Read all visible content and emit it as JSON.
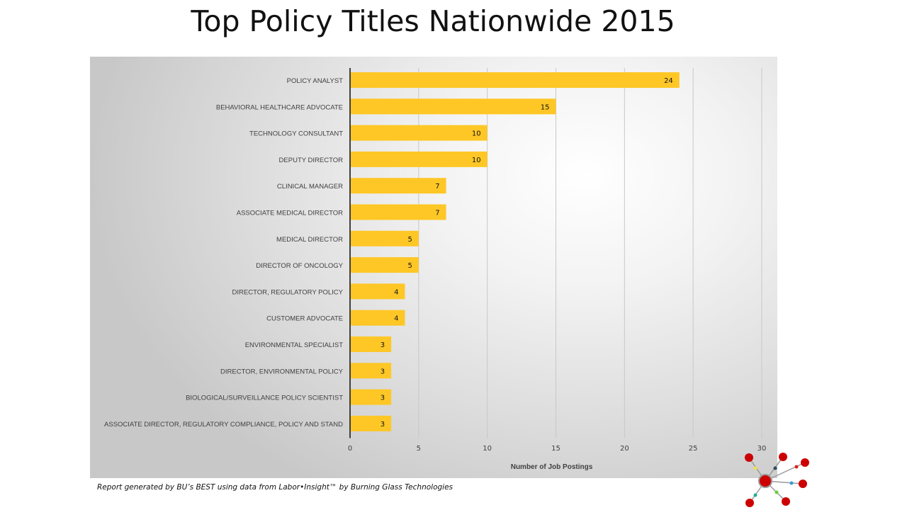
{
  "title": "Top Policy Titles Nationwide 2015",
  "footer": "Report generated by BU’s BEST using data from Labor•Insight™ by Burning Glass Technologies",
  "logo": "network-logo-icon",
  "colors": {
    "bar": "#FEC726",
    "axis": "#404040",
    "grid": "#c8c8c8",
    "label": "#404040",
    "logo_node": "#CC0000"
  },
  "chart_data": {
    "type": "bar",
    "orientation": "horizontal",
    "title": "Top Policy Titles Nationwide 2015",
    "xlabel": "Number of Job Postings",
    "ylabel": "",
    "xlim": [
      0,
      30
    ],
    "xticks": [
      "0",
      "5",
      "10",
      "15",
      "20",
      "25",
      "30"
    ],
    "grid": true,
    "legend": "none",
    "categories": [
      "POLICY ANALYST",
      "BEHAVIORAL HEALTHCARE ADVOCATE",
      "TECHNOLOGY CONSULTANT",
      "DEPUTY DIRECTOR",
      "CLINICAL MANAGER",
      "ASSOCIATE MEDICAL DIRECTOR",
      "MEDICAL DIRECTOR",
      "DIRECTOR OF ONCOLOGY",
      "DIRECTOR, REGULATORY POLICY",
      "CUSTOMER ADVOCATE",
      "ENVIRONMENTAL SPECIALIST",
      "DIRECTOR, ENVIRONMENTAL POLICY",
      "BIOLOGICAL/SURVEILLANCE POLICY SCIENTIST",
      "ASSOCIATE DIRECTOR, REGULATORY COMPLIANCE, POLICY AND STAND"
    ],
    "values": [
      24,
      15,
      10,
      10,
      7,
      7,
      5,
      5,
      4,
      4,
      3,
      3,
      3,
      3
    ]
  }
}
